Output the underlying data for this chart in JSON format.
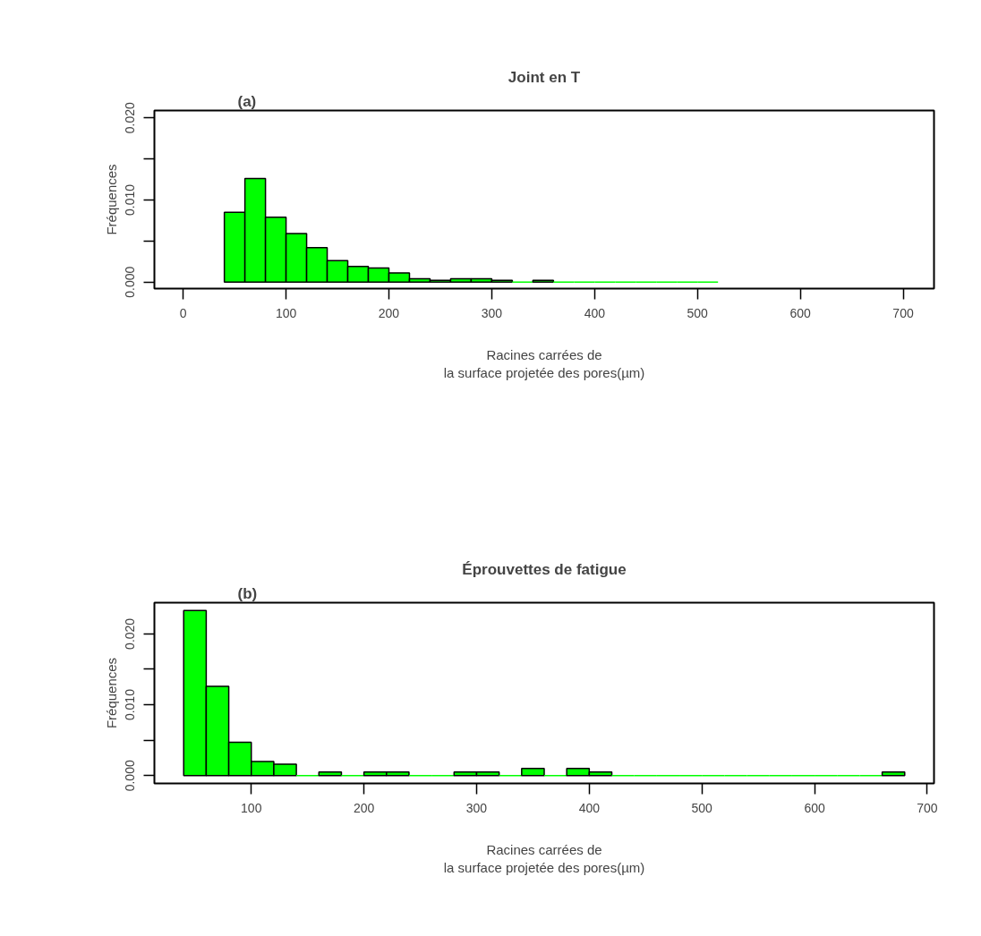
{
  "chart_data": [
    {
      "type": "histogram",
      "title": "Joint en T",
      "annotations": [
        "(a)"
      ],
      "xlabel": "Racines carrées de\nla surface projetée des pores(µm)",
      "ylabel": "Fréquences",
      "color": "#00ff00",
      "bins": [
        40,
        60,
        80,
        100,
        120,
        140,
        160,
        180,
        200,
        220,
        240,
        260,
        280,
        300,
        320,
        340,
        360,
        380,
        400,
        420,
        440,
        460,
        480,
        500,
        520
      ],
      "values": [
        0.0085,
        0.0126,
        0.0079,
        0.0059,
        0.0042,
        0.0026,
        0.0019,
        0.0017,
        0.0011,
        0.0004,
        0.0002,
        0.0004,
        0.0004,
        0.0002,
        0,
        0.0002,
        0,
        0,
        0,
        0,
        0,
        0,
        0,
        0
      ],
      "xlim": [
        -28,
        730
      ],
      "ylim": [
        -0.0008,
        0.0209
      ],
      "xticks": [
        0,
        100,
        200,
        300,
        400,
        500,
        600,
        700
      ],
      "yticks": [
        {
          "value": 0,
          "label": "0.000"
        },
        {
          "value": 0.005,
          "label": null
        },
        {
          "value": 0.01,
          "label": "0.010"
        },
        {
          "value": 0.015,
          "label": null
        },
        {
          "value": 0.02,
          "label": "0.020"
        }
      ],
      "grid": false
    },
    {
      "type": "histogram",
      "title": "Éprouvettes de fatigue",
      "annotations": [
        "(b)"
      ],
      "xlabel": "Racines carrées de\nla surface projetée des pores(µm)",
      "ylabel": "Fréquences",
      "color": "#00ff00",
      "bins": [
        40,
        60,
        80,
        100,
        120,
        140,
        160,
        180,
        200,
        220,
        240,
        260,
        280,
        300,
        320,
        340,
        360,
        380,
        400,
        420,
        440,
        460,
        480,
        500,
        520,
        540,
        560,
        580,
        600,
        620,
        640,
        660,
        680
      ],
      "values": [
        0.0233,
        0.0126,
        0.0047,
        0.002,
        0.0016,
        0,
        0.0005,
        0,
        0.0005,
        0.0005,
        0,
        0,
        0.0005,
        0.0005,
        0,
        0.001,
        0,
        0.001,
        0.0005,
        0,
        0,
        0,
        0,
        0,
        0,
        0,
        0,
        0,
        0,
        0,
        0,
        0.0005
      ],
      "xlim": [
        14,
        706
      ],
      "ylim": [
        -0.0011,
        0.0244
      ],
      "xticks": [
        100,
        200,
        300,
        400,
        500,
        600,
        700
      ],
      "yticks": [
        {
          "value": 0,
          "label": "0.000"
        },
        {
          "value": 0.005,
          "label": null
        },
        {
          "value": 0.01,
          "label": "0.010"
        },
        {
          "value": 0.015,
          "label": null
        },
        {
          "value": 0.02,
          "label": "0.020"
        }
      ],
      "grid": false
    }
  ]
}
